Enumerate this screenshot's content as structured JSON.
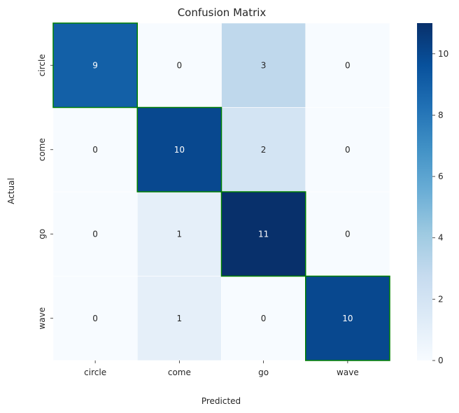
{
  "chart_data": {
    "type": "heatmap",
    "title": "Confusion Matrix",
    "xlabel": "Predicted",
    "ylabel": "Actual",
    "x_categories": [
      "circle",
      "come",
      "go",
      "wave"
    ],
    "y_categories": [
      "circle",
      "come",
      "go",
      "wave"
    ],
    "values": [
      [
        9,
        0,
        3,
        0
      ],
      [
        0,
        10,
        2,
        0
      ],
      [
        0,
        1,
        11,
        0
      ],
      [
        0,
        1,
        0,
        10
      ]
    ],
    "colorbar": {
      "min": 0,
      "max": 11,
      "ticks": [
        0,
        2,
        4,
        6,
        8,
        10
      ]
    },
    "colormap": "Blues",
    "highlight_diagonal_color": "#008000",
    "grid": false
  }
}
